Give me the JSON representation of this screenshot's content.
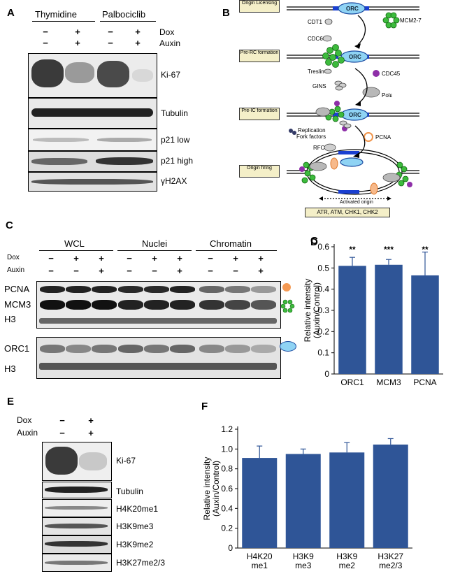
{
  "panelA": {
    "label": "A",
    "groups": [
      "Thymidine",
      "Palbociclib"
    ],
    "rows": [
      {
        "name": "Dox",
        "signs": [
          "−",
          "+",
          "−",
          "+"
        ]
      },
      {
        "name": "Auxin",
        "signs": [
          "−",
          "+",
          "−",
          "+"
        ]
      }
    ],
    "blots": [
      "Ki-67",
      "Tubulin",
      "p21  low",
      "p21  high",
      "γH2AX"
    ]
  },
  "panelB": {
    "label": "B",
    "stages": [
      "Origin Licensing",
      "Pre-RC formation",
      "Pre-IC formation",
      "Origin firing"
    ],
    "factors": {
      "orc": "ORC",
      "cdt1": "CDT1",
      "cdc6": "CDC6",
      "mcm": "MCM2-7",
      "treslin": "Treslin",
      "cdc45": "CDC45",
      "gins": "GINS",
      "pole": "Polε",
      "fork1": "Replication",
      "fork2": "Fork factors",
      "pcna": "PCNA",
      "rfc": "RFC",
      "activated": "Activated origin",
      "checkpoint": "ATR, ATM, CHK1, CHK2"
    }
  },
  "panelC": {
    "label": "C",
    "groups": [
      "WCL",
      "Nuclei",
      "Chromatin"
    ],
    "rows": [
      {
        "name": "Dox",
        "signs": [
          "−",
          "+",
          "+",
          "−",
          "+",
          "+",
          "−",
          "+",
          "+"
        ]
      },
      {
        "name": "Auxin",
        "signs": [
          "−",
          "−",
          "+",
          "−",
          "−",
          "+",
          "−",
          "−",
          "+"
        ]
      }
    ],
    "blots": [
      "PCNA",
      "MCM3",
      "H3",
      "ORC1",
      "H3"
    ]
  },
  "panelE": {
    "label": "E",
    "rows": [
      {
        "name": "Dox",
        "signs": [
          "−",
          "+"
        ]
      },
      {
        "name": "Auxin",
        "signs": [
          "−",
          "+"
        ]
      }
    ],
    "blots": [
      "Ki-67",
      "Tubulin",
      "H4K20me1",
      "H3K9me3",
      "H3K9me2",
      "H3K27me2/3"
    ]
  },
  "chart_data": [
    {
      "panel": "D",
      "type": "bar",
      "categories": [
        "ORC1",
        "MCM3",
        "PCNA"
      ],
      "values": [
        0.51,
        0.515,
        0.465
      ],
      "errors": [
        0.04,
        0.025,
        0.11
      ],
      "annotations": [
        "**",
        "***",
        "**"
      ],
      "ylabel": "Relative intensity (Auxin/Control)",
      "ylim": [
        0,
        0.6
      ],
      "yticks": [
        "0",
        "0.1",
        "0.2",
        "0.3",
        "0.4",
        "0.5",
        "0.6"
      ],
      "color": "#2f5597"
    },
    {
      "panel": "F",
      "type": "bar",
      "categories": [
        "H4K20 me1",
        "H3K9 me3",
        "H3K9 me2",
        "H3K27 me2/3"
      ],
      "values": [
        0.91,
        0.95,
        0.965,
        1.045
      ],
      "errors": [
        0.12,
        0.05,
        0.1,
        0.06
      ],
      "ylabel": "Relative intensity (Auxin/Control)",
      "ylim": [
        0,
        1.2
      ],
      "yticks": [
        "0",
        "0.2",
        "0.4",
        "0.6",
        "0.8",
        "1.0",
        "1.2"
      ],
      "color": "#2f5597"
    }
  ]
}
